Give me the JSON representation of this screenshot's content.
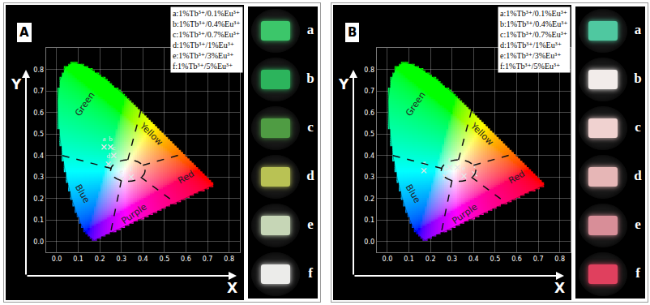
{
  "chart_data": [
    {
      "type": "scatter",
      "title": "A",
      "xlabel": "X",
      "ylabel": "Y",
      "xlim": [
        -0.05,
        0.85
      ],
      "ylim": [
        -0.05,
        0.9
      ],
      "xticks": [
        {
          "value": 0,
          "label": "0.0"
        },
        {
          "value": 0.1,
          "label": "0.1"
        },
        {
          "value": 0.2,
          "label": "0.2"
        },
        {
          "value": 0.3,
          "label": "0.3"
        },
        {
          "value": 0.4,
          "label": "0.4"
        },
        {
          "value": 0.5,
          "label": "0.5"
        },
        {
          "value": 0.6,
          "label": "0.6"
        },
        {
          "value": 0.7,
          "label": "0.7"
        },
        {
          "value": 0.8,
          "label": "0.8"
        }
      ],
      "yticks": [
        {
          "value": 0,
          "label": "0.0"
        },
        {
          "value": 0.1,
          "label": "0.1"
        },
        {
          "value": 0.2,
          "label": "0.2"
        },
        {
          "value": 0.3,
          "label": "0.3"
        },
        {
          "value": 0.4,
          "label": "0.4"
        },
        {
          "value": 0.5,
          "label": "0.5"
        },
        {
          "value": 0.6,
          "label": "0.6"
        },
        {
          "value": 0.7,
          "label": "0.7"
        },
        {
          "value": 0.8,
          "label": "0.8"
        }
      ],
      "grid": true,
      "legend": "upper right",
      "series": [
        {
          "name": "a:1%Tb³⁺/0.1%Eu³⁺",
          "label": "a",
          "x": [
            0.22
          ],
          "values": [
            0.44
          ],
          "color": "#e6e6e6",
          "marker": "x"
        },
        {
          "name": "b:1%Tb³⁺/0.4%Eu³⁺",
          "label": "b",
          "x": [
            0.25
          ],
          "values": [
            0.44
          ],
          "color": "#e6e6e6",
          "marker": "x"
        },
        {
          "name": "c:1%Tb³⁺/0.7%Eu³⁺",
          "label": "c",
          "x": [
            0.265
          ],
          "values": [
            0.4
          ],
          "color": "#e6e6e6",
          "marker": "x"
        },
        {
          "name": "d:1%Tb³⁺/1%Eu³⁺",
          "label": "d",
          "x": [
            0.24
          ],
          "values": [
            0.36
          ],
          "color": "#e6e6e6",
          "marker": "x"
        },
        {
          "name": "e:1%Tb³⁺/3%Eu³⁺",
          "label": "e",
          "x": [
            0.3
          ],
          "values": [
            0.29
          ],
          "color": "#e6e6e6",
          "marker": "x"
        },
        {
          "name": "f:1%Tb³⁺/5%Eu³⁺",
          "label": "f",
          "x": [
            0.345
          ],
          "values": [
            0.3
          ],
          "color": "#e6e6e6",
          "marker": "x"
        }
      ],
      "region_labels": [
        "Green",
        "Yellow",
        "Blue",
        "Purple",
        "Red"
      ],
      "locus": {
        "x": [
          0.1741,
          0.144,
          0.1241,
          0.1096,
          0.0913,
          0.0687,
          0.0454,
          0.0235,
          0.0082,
          0.0039,
          0.0139,
          0.0389,
          0.0743,
          0.1142,
          0.1547,
          0.2296,
          0.3016,
          0.3731,
          0.4441,
          0.5125,
          0.5752,
          0.627,
          0.6915,
          0.7347
        ],
        "y": [
          0.005,
          0.0297,
          0.0578,
          0.0868,
          0.1327,
          0.2007,
          0.295,
          0.4127,
          0.5384,
          0.6548,
          0.7502,
          0.812,
          0.8338,
          0.8262,
          0.8059,
          0.7543,
          0.6923,
          0.6245,
          0.5547,
          0.4866,
          0.4242,
          0.3725,
          0.3083,
          0.2653
        ]
      },
      "photos": {
        "labels": [
          "a",
          "b",
          "c",
          "d",
          "e",
          "f"
        ],
        "colors": [
          "#3cc66a",
          "#2cb45c",
          "#4f9c43",
          "#b9c254",
          "#c6d6b6",
          "#ececea"
        ]
      }
    },
    {
      "type": "scatter",
      "title": "B",
      "xlabel": "X",
      "ylabel": "Y",
      "xlim": [
        -0.05,
        0.85
      ],
      "ylim": [
        -0.05,
        0.9
      ],
      "xticks": [
        {
          "value": 0,
          "label": "0.0"
        },
        {
          "value": 0.1,
          "label": "0.1"
        },
        {
          "value": 0.2,
          "label": "0.2"
        },
        {
          "value": 0.3,
          "label": "0.3"
        },
        {
          "value": 0.4,
          "label": "0.4"
        },
        {
          "value": 0.5,
          "label": "0.5"
        },
        {
          "value": 0.6,
          "label": "0.6"
        },
        {
          "value": 0.7,
          "label": "0.7"
        },
        {
          "value": 0.8,
          "label": "0.8"
        }
      ],
      "yticks": [
        {
          "value": 0,
          "label": "0.0"
        },
        {
          "value": 0.1,
          "label": "0.1"
        },
        {
          "value": 0.2,
          "label": "0.2"
        },
        {
          "value": 0.3,
          "label": "0.3"
        },
        {
          "value": 0.4,
          "label": "0.4"
        },
        {
          "value": 0.5,
          "label": "0.5"
        },
        {
          "value": 0.6,
          "label": "0.6"
        },
        {
          "value": 0.7,
          "label": "0.7"
        },
        {
          "value": 0.8,
          "label": "0.8"
        }
      ],
      "grid": true,
      "legend": "upper right",
      "series": [
        {
          "name": "a:1%Tb³⁺/0.1%Eu³⁺",
          "label": "a",
          "x": [
            0.17
          ],
          "values": [
            0.33
          ],
          "color": "#e6e6e6",
          "marker": "x"
        },
        {
          "name": "b:1%Tb³⁺/0.4%Eu³⁺",
          "label": "b",
          "x": [
            0.27
          ],
          "values": [
            0.3
          ],
          "color": "#e6e6e6",
          "marker": "x"
        },
        {
          "name": "c:1%Tb³⁺/0.7%Eu³⁺",
          "label": "c",
          "x": [
            0.29
          ],
          "values": [
            0.345
          ],
          "color": "#e6e6e6",
          "marker": "x"
        },
        {
          "name": "d:1%Tb³⁺/1%Eu³⁺",
          "label": "d",
          "x": [
            0.325
          ],
          "values": [
            0.345
          ],
          "color": "#e6e6e6",
          "marker": "x"
        },
        {
          "name": "e:1%Tb³⁺/3%Eu³⁺",
          "label": "e",
          "x": [
            0.355
          ],
          "values": [
            0.305
          ],
          "color": "#e6e6e6",
          "marker": "x"
        },
        {
          "name": "f:1%Tb³⁺/5%Eu³⁺",
          "label": "f",
          "x": [
            0.405
          ],
          "values": [
            0.315
          ],
          "color": "#e6e6e6",
          "marker": "x"
        }
      ],
      "region_labels": [
        "Green",
        "Yellow",
        "Blue",
        "Purple",
        "Red"
      ],
      "locus": {
        "x": [
          0.1741,
          0.144,
          0.1241,
          0.1096,
          0.0913,
          0.0687,
          0.0454,
          0.0235,
          0.0082,
          0.0039,
          0.0139,
          0.0389,
          0.0743,
          0.1142,
          0.1547,
          0.2296,
          0.3016,
          0.3731,
          0.4441,
          0.5125,
          0.5752,
          0.627,
          0.6915,
          0.7347
        ],
        "y": [
          0.005,
          0.0297,
          0.0578,
          0.0868,
          0.1327,
          0.2007,
          0.295,
          0.4127,
          0.5384,
          0.6548,
          0.7502,
          0.812,
          0.8338,
          0.8262,
          0.8059,
          0.7543,
          0.6923,
          0.6245,
          0.5547,
          0.4866,
          0.4242,
          0.3725,
          0.3083,
          0.2653
        ]
      },
      "photos": {
        "labels": [
          "a",
          "b",
          "c",
          "d",
          "e",
          "f"
        ],
        "colors": [
          "#4fc8a0",
          "#f2ecea",
          "#f0d2d0",
          "#e6b6b6",
          "#d88e98",
          "#e0405e"
        ]
      }
    }
  ]
}
